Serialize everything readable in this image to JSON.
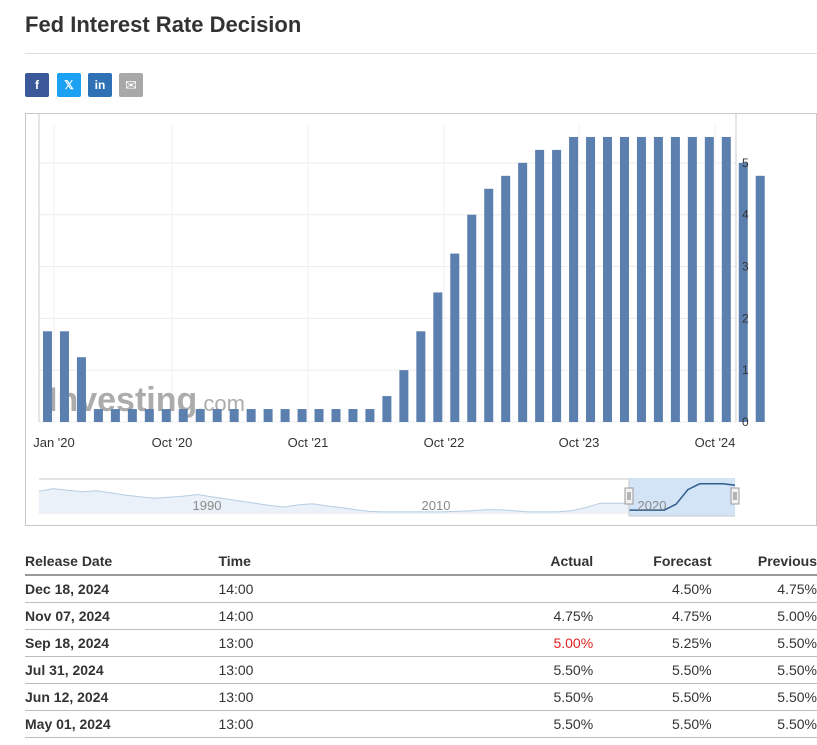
{
  "page": {
    "title": "Fed Interest Rate Decision"
  },
  "share_icons": [
    {
      "icon": "facebook-icon",
      "glyph": "f",
      "color": "#3b5998"
    },
    {
      "icon": "x-twitter-icon",
      "glyph": "𝕏",
      "color": "#1da1f2"
    },
    {
      "icon": "linkedin-icon",
      "glyph": "in",
      "color": "#2e72b5"
    },
    {
      "icon": "email-icon",
      "glyph": "✉",
      "color": "#a8a8a8"
    }
  ],
  "chart_data": {
    "type": "bar",
    "x_tick_labels": [
      "Jan '20",
      "Oct '20",
      "Oct '21",
      "Oct '22",
      "Oct '23",
      "Oct '24"
    ],
    "y_ticks": [
      0,
      1,
      2,
      3,
      4,
      5
    ],
    "ylim": [
      0,
      5.75
    ],
    "y_axis_position": "right",
    "grid": true,
    "bar_color": "#5b7fae",
    "values": [
      1.75,
      1.75,
      1.25,
      0.25,
      0.25,
      0.25,
      0.25,
      0.25,
      0.25,
      0.25,
      0.25,
      0.25,
      0.25,
      0.25,
      0.25,
      0.25,
      0.25,
      0.25,
      0.25,
      0.25,
      0.5,
      1.0,
      1.75,
      2.5,
      3.25,
      4.0,
      4.5,
      4.75,
      5.0,
      5.25,
      5.25,
      5.5,
      5.5,
      5.5,
      5.5,
      5.5,
      5.5,
      5.5,
      5.5,
      5.5,
      5.5,
      5.0,
      4.75
    ],
    "watermark": {
      "brand": "Investing",
      "suffix": ".com"
    },
    "navigator": {
      "labels": [
        "1990",
        "2010",
        "2020"
      ],
      "series": [
        4.0,
        4.5,
        4.2,
        3.9,
        4.1,
        3.7,
        3.3,
        3.0,
        2.7,
        2.9,
        3.1,
        3.4,
        3.0,
        2.6,
        2.2,
        1.8,
        1.4,
        1.1,
        1.5,
        1.7,
        1.3,
        1.0,
        0.6,
        0.3,
        0.2,
        0.2,
        0.2,
        0.2,
        0.2,
        0.3,
        0.4,
        0.6,
        0.6,
        0.4,
        0.2,
        0.2,
        0.2,
        0.4,
        1.0,
        1.8,
        1.8,
        1.8
      ],
      "selected_series": [
        0.2,
        0.2,
        0.2,
        0.2,
        0.6,
        1.6,
        2.0,
        2.0,
        2.0,
        1.9
      ]
    }
  },
  "table": {
    "headers": {
      "release_date": "Release Date",
      "time": "Time",
      "actual": "Actual",
      "forecast": "Forecast",
      "previous": "Previous"
    },
    "rows": [
      {
        "date": "Dec 18, 2024",
        "time": "14:00",
        "actual": "",
        "forecast": "4.50%",
        "previous": "4.75%",
        "actual_color": "#333333"
      },
      {
        "date": "Nov 07, 2024",
        "time": "14:00",
        "actual": "4.75%",
        "forecast": "4.75%",
        "previous": "5.00%",
        "actual_color": "#333333"
      },
      {
        "date": "Sep 18, 2024",
        "time": "13:00",
        "actual": "5.00%",
        "forecast": "5.25%",
        "previous": "5.50%",
        "actual_color": "#e02020"
      },
      {
        "date": "Jul 31, 2024",
        "time": "13:00",
        "actual": "5.50%",
        "forecast": "5.50%",
        "previous": "5.50%",
        "actual_color": "#333333"
      },
      {
        "date": "Jun 12, 2024",
        "time": "13:00",
        "actual": "5.50%",
        "forecast": "5.50%",
        "previous": "5.50%",
        "actual_color": "#333333"
      },
      {
        "date": "May 01, 2024",
        "time": "13:00",
        "actual": "5.50%",
        "forecast": "5.50%",
        "previous": "5.50%",
        "actual_color": "#333333"
      }
    ]
  }
}
